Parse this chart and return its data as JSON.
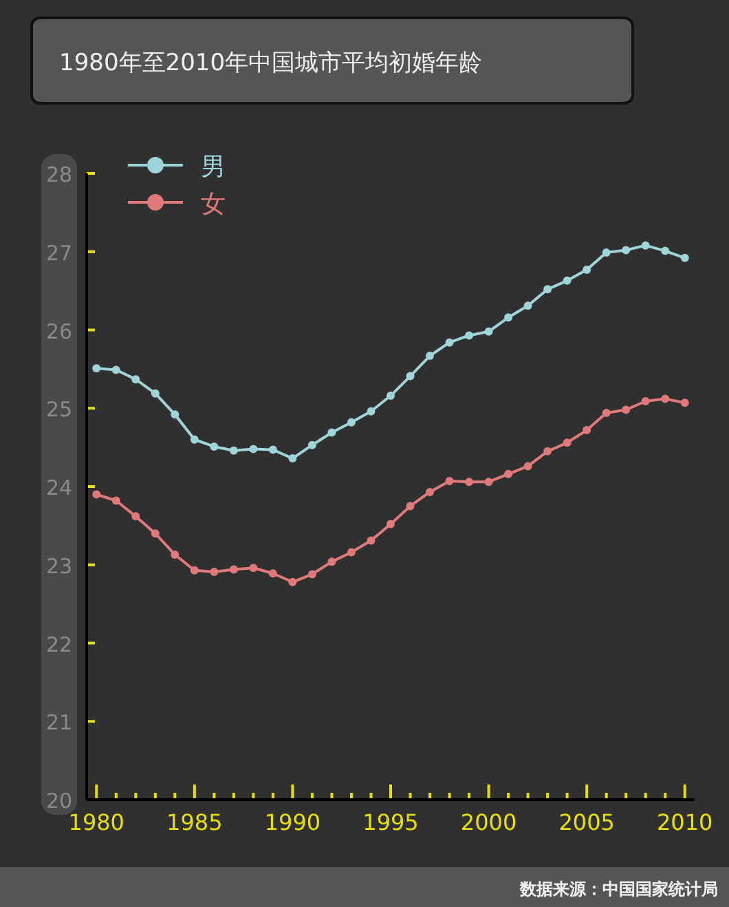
{
  "chart_data": {
    "type": "line",
    "title": "1980年至2010年中国城市平均初婚年龄",
    "annotations": [
      "数据来源：中国国家统计局"
    ],
    "x": [
      1980,
      1981,
      1982,
      1983,
      1984,
      1985,
      1986,
      1987,
      1988,
      1989,
      1990,
      1991,
      1992,
      1993,
      1994,
      1995,
      1996,
      1997,
      1998,
      1999,
      2000,
      2001,
      2002,
      2003,
      2004,
      2005,
      2006,
      2007,
      2008,
      2009,
      2010
    ],
    "series": [
      {
        "name": "男",
        "color": "#9fd4d8",
        "values": [
          25.51,
          25.49,
          25.37,
          25.19,
          24.92,
          24.6,
          24.51,
          24.46,
          24.48,
          24.47,
          24.36,
          24.53,
          24.69,
          24.82,
          24.96,
          25.16,
          25.41,
          25.67,
          25.84,
          25.93,
          25.98,
          26.16,
          26.31,
          26.52,
          26.63,
          26.77,
          26.99,
          27.02,
          27.08,
          27.01,
          26.92
        ]
      },
      {
        "name": "女",
        "color": "#e07a7a",
        "values": [
          23.9,
          23.82,
          23.62,
          23.4,
          23.13,
          22.93,
          22.91,
          22.94,
          22.96,
          22.89,
          22.78,
          22.88,
          23.04,
          23.16,
          23.31,
          23.52,
          23.75,
          23.93,
          24.07,
          24.06,
          24.06,
          24.16,
          24.26,
          24.45,
          24.56,
          24.72,
          24.94,
          24.98,
          25.09,
          25.12,
          25.07
        ]
      }
    ],
    "xlim": [
      1979.5,
      2010.5
    ],
    "xticks": [
      1980,
      {
        "value": 1981,
        "label": null
      },
      {
        "value": 1982,
        "label": null
      },
      {
        "value": 1983,
        "label": null
      },
      {
        "value": 1984,
        "label": null
      },
      1985,
      {
        "value": 1986,
        "label": null
      },
      {
        "value": 1987,
        "label": null
      },
      {
        "value": 1988,
        "label": null
      },
      {
        "value": 1989,
        "label": null
      },
      1990,
      {
        "value": 1991,
        "label": null
      },
      {
        "value": 1992,
        "label": null
      },
      {
        "value": 1993,
        "label": null
      },
      {
        "value": 1994,
        "label": null
      },
      1995,
      {
        "value": 1996,
        "label": null
      },
      {
        "value": 1997,
        "label": null
      },
      {
        "value": 1998,
        "label": null
      },
      {
        "value": 1999,
        "label": null
      },
      2000,
      {
        "value": 2001,
        "label": null
      },
      {
        "value": 2002,
        "label": null
      },
      {
        "value": 2003,
        "label": null
      },
      {
        "value": 2004,
        "label": null
      },
      2005,
      {
        "value": 2006,
        "label": null
      },
      {
        "value": 2007,
        "label": null
      },
      {
        "value": 2008,
        "label": null
      },
      {
        "value": 2009,
        "label": null
      },
      2010
    ],
    "ylim": [
      20,
      28
    ],
    "yticks": [
      20,
      21,
      22,
      23,
      24,
      25,
      26,
      27,
      28
    ],
    "marker": "circle",
    "line_style": "solid",
    "legend": "top left",
    "grid": false
  }
}
